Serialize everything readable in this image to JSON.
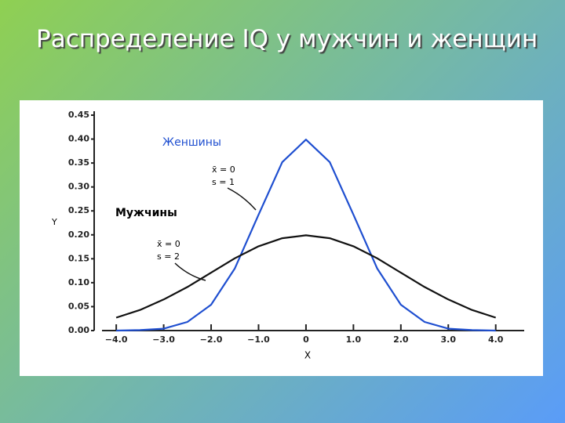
{
  "chart_data": {
    "type": "line",
    "title": "Распределение IQ у мужчин и женщин",
    "x_label": "X",
    "y_label": "Y",
    "x": [
      -4,
      -3.5,
      -3,
      -2.5,
      -2,
      -1.5,
      -1,
      -0.5,
      0,
      0.5,
      1,
      1.5,
      2,
      2.5,
      3,
      3.5,
      4
    ],
    "series": [
      {
        "name": "Женшины",
        "color": "#1f4fd0",
        "values": [
          0.0,
          0.001,
          0.004,
          0.018,
          0.054,
          0.13,
          0.242,
          0.352,
          0.399,
          0.352,
          0.242,
          0.13,
          0.054,
          0.018,
          0.004,
          0.001,
          0.0
        ]
      },
      {
        "name": "Мужчины",
        "color": "#111111",
        "values": [
          0.027,
          0.043,
          0.065,
          0.091,
          0.121,
          0.151,
          0.176,
          0.193,
          0.199,
          0.193,
          0.176,
          0.151,
          0.121,
          0.091,
          0.065,
          0.043,
          0.027
        ]
      }
    ],
    "annotations": [
      "x̄ = 0",
      "s = 1",
      "x̄ = 0",
      "s = 2"
    ],
    "xlim": [
      -4.3,
      4.6
    ],
    "xticks": [
      {
        "value": -4,
        "label": "−4.0"
      },
      {
        "value": -3,
        "label": "−3.0"
      },
      {
        "value": -2,
        "label": "−2.0"
      },
      {
        "value": -1,
        "label": "−1.0"
      },
      0,
      {
        "value": 1,
        "label": "1.0"
      },
      {
        "value": 2,
        "label": "2.0"
      },
      {
        "value": 3,
        "label": "3.0"
      },
      {
        "value": 4,
        "label": "4.0"
      }
    ],
    "ylim": [
      0,
      0.45
    ],
    "yticks": [
      {
        "value": 0,
        "label": "0.00"
      },
      0.05,
      {
        "value": 0.1,
        "label": "0.10"
      },
      0.15,
      {
        "value": 0.2,
        "label": "0.20"
      },
      0.25,
      {
        "value": 0.3,
        "label": "0.30"
      },
      0.35,
      {
        "value": 0.4,
        "label": "0.40"
      },
      0.45
    ]
  }
}
